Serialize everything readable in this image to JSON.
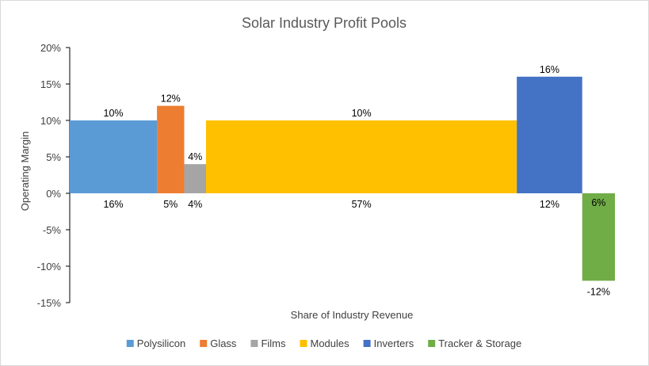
{
  "chart_data": {
    "type": "bar",
    "variant": "variable-width (marimekko) bars",
    "title": "Solar Industry Profit Pools",
    "xlabel": "Share of Industry Revenue",
    "ylabel": "Operating Margin",
    "ylim": [
      -15,
      20
    ],
    "yticks": [
      "20%",
      "15%",
      "10%",
      "5%",
      "0%",
      "-5%",
      "-10%",
      "-15%"
    ],
    "ytick_values": [
      20,
      15,
      10,
      5,
      0,
      -5,
      -10,
      -15
    ],
    "grid": false,
    "legend_position": "bottom",
    "series": [
      {
        "name": "Polysilicon",
        "share": 16,
        "margin": 10,
        "share_label": "16%",
        "margin_label": "10%",
        "color": "#5B9BD5"
      },
      {
        "name": "Glass",
        "share": 5,
        "margin": 12,
        "share_label": "5%",
        "margin_label": "12%",
        "color": "#ED7D31"
      },
      {
        "name": "Films",
        "share": 4,
        "margin": 4,
        "share_label": "4%",
        "margin_label": "4%",
        "color": "#A5A5A5"
      },
      {
        "name": "Modules",
        "share": 57,
        "margin": 10,
        "share_label": "57%",
        "margin_label": "10%",
        "color": "#FFC000"
      },
      {
        "name": "Inverters",
        "share": 12,
        "margin": 16,
        "share_label": "12%",
        "margin_label": "16%",
        "color": "#4472C4"
      },
      {
        "name": "Tracker & Storage",
        "share": 6,
        "margin": -12,
        "share_label": "6%",
        "margin_label": "-12%",
        "color": "#70AD47"
      }
    ]
  }
}
